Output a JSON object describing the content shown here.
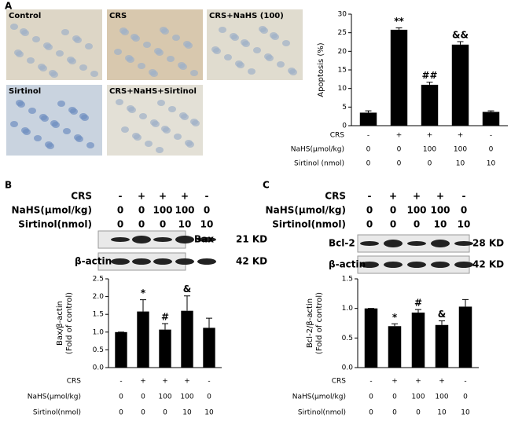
{
  "panel_labels": [
    "A",
    "B",
    "C"
  ],
  "micrographs": [
    "Control",
    "CRS",
    "CRS+NaHS (100)",
    "Sirtinol",
    "CRS+NaHS+Sirtinol"
  ],
  "blots": [
    {
      "header": [
        {
          "label": "CRS",
          "cells": [
            "-",
            "+",
            "+",
            "+",
            "-"
          ]
        },
        {
          "label": "NaHS(μmol/kg)",
          "cells": [
            "0",
            "0",
            "100",
            "100",
            "0"
          ]
        },
        {
          "label": "Sirtinol(nmol)",
          "cells": [
            "0",
            "0",
            "0",
            "10",
            "10"
          ]
        }
      ],
      "bands": [
        {
          "label": "Bax",
          "size": "21 KD"
        },
        {
          "label": "β-actin",
          "size": "42 KD"
        }
      ]
    },
    {
      "header": [
        {
          "label": "CRS",
          "cells": [
            "-",
            "+",
            "+",
            "+",
            "-"
          ]
        },
        {
          "label": "NaHS(μmol/kg)",
          "cells": [
            "0",
            "0",
            "100",
            "100",
            "0"
          ]
        },
        {
          "label": "Sirtinol(nmol)",
          "cells": [
            "0",
            "0",
            "0",
            "10",
            "10"
          ]
        }
      ],
      "bands": [
        {
          "label": "Bcl-2",
          "size": "28 KD"
        },
        {
          "label": "β-actin",
          "size": "42 KD"
        }
      ]
    }
  ],
  "chart_data": [
    {
      "type": "bar",
      "ylabel": [
        "Apoptosis (%)"
      ],
      "categories": [
        null,
        null,
        null,
        null,
        null
      ],
      "values": [
        3.5,
        25.8,
        11,
        21.8,
        3.7
      ],
      "errors": [
        0.5,
        0.5,
        0.7,
        0.8,
        0.3
      ],
      "annotations": [
        null,
        "**",
        "##",
        "&&",
        null
      ],
      "color": "#000000",
      "ylim": [
        0,
        30
      ],
      "yticks": [
        0,
        5,
        10,
        15,
        20,
        25,
        30
      ],
      "treatments": [
        {
          "label": "CRS",
          "cells": [
            "-",
            "+",
            "+",
            "+",
            "-"
          ]
        },
        {
          "label": "NaHS(μmol/kg)",
          "cells": [
            "0",
            "0",
            "100",
            "100",
            "0"
          ]
        },
        {
          "label": "Sirtinol (nmol)",
          "cells": [
            "0",
            "0",
            "0",
            "10",
            "10"
          ]
        }
      ]
    },
    {
      "type": "bar",
      "ylabel": [
        "Bax/β-actin",
        "(Fold of control)"
      ],
      "categories": [
        null,
        null,
        null,
        null,
        null
      ],
      "values": [
        1.0,
        1.58,
        1.07,
        1.6,
        1.12
      ],
      "errors": [
        0,
        0.33,
        0.17,
        0.42,
        0.27
      ],
      "annotations": [
        null,
        "*",
        "#",
        "&",
        null
      ],
      "color": "#000000",
      "ylim": [
        0,
        2.5
      ],
      "yticks": [
        {
          "value": 0,
          "label": "0.0"
        },
        0.5,
        {
          "value": 1,
          "label": "1.0"
        },
        1.5,
        {
          "value": 2,
          "label": "2.0"
        },
        2.5
      ],
      "treatments": [
        {
          "label": "CRS",
          "cells": [
            "-",
            "+",
            "+",
            "+",
            "-"
          ]
        },
        {
          "label": "NaHS(μmol/kg)",
          "cells": [
            "0",
            "0",
            "100",
            "100",
            "0"
          ]
        },
        {
          "label": "Sirtinol(nmol)",
          "cells": [
            "0",
            "0",
            "0",
            "10",
            "10"
          ]
        }
      ]
    },
    {
      "type": "bar",
      "ylabel": [
        "Bcl-2/β-actin",
        "(Fold of control)"
      ],
      "categories": [
        null,
        null,
        null,
        null,
        null
      ],
      "values": [
        1.0,
        0.7,
        0.93,
        0.72,
        1.03
      ],
      "errors": [
        0,
        0.04,
        0.05,
        0.07,
        0.12
      ],
      "annotations": [
        null,
        "*",
        "#",
        "&",
        null
      ],
      "color": "#000000",
      "ylim": [
        0,
        1.5
      ],
      "yticks": [
        {
          "value": 0,
          "label": "0.0"
        },
        0.5,
        {
          "value": 1,
          "label": "1.0"
        },
        1.5
      ],
      "treatments": [
        {
          "label": "CRS",
          "cells": [
            "-",
            "+",
            "+",
            "+",
            "-"
          ]
        },
        {
          "label": "NaHS(μmol/kg)",
          "cells": [
            "0",
            "0",
            "100",
            "100",
            "0"
          ]
        },
        {
          "label": "Sirtinol(nmol)",
          "cells": [
            "0",
            "0",
            "0",
            "10",
            "10"
          ]
        }
      ]
    }
  ]
}
